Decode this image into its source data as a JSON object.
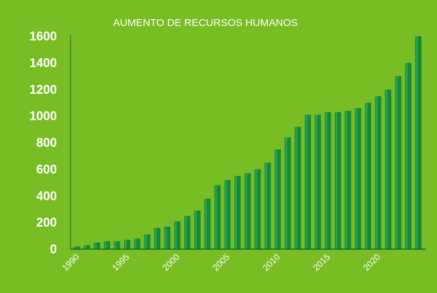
{
  "chart_data": {
    "type": "bar",
    "title": "AUMENTO DE RECURSOS HUMANOS",
    "xlabel": "",
    "ylabel": "",
    "x": [
      1990,
      1991,
      1992,
      1993,
      1994,
      1995,
      1996,
      1997,
      1998,
      1999,
      2000,
      2001,
      2002,
      2003,
      2004,
      2005,
      2006,
      2007,
      2008,
      2009,
      2010,
      2011,
      2012,
      2013,
      2014,
      2015,
      2016,
      2017,
      2018,
      2019,
      2020,
      2021,
      2022,
      2023,
      2024
    ],
    "values": [
      20,
      30,
      50,
      60,
      60,
      70,
      80,
      110,
      160,
      170,
      210,
      250,
      290,
      380,
      480,
      520,
      550,
      570,
      600,
      650,
      750,
      840,
      920,
      1010,
      1010,
      1030,
      1030,
      1040,
      1060,
      1100,
      1150,
      1200,
      1300,
      1400,
      1600
    ],
    "xticks": [
      "1990",
      "1995",
      "2000",
      "2005",
      "2010",
      "2015",
      "2020"
    ],
    "yticks": [
      "0",
      "200",
      "400",
      "600",
      "800",
      "1000",
      "1200",
      "1400",
      "1600"
    ],
    "ylim": [
      0,
      1600
    ],
    "grid": false,
    "legend": "none",
    "colors": {
      "background": "#77bd23",
      "bar": "#138a3c",
      "bar_highlight": "#2ea34e",
      "axis": "#0e6b2c"
    }
  }
}
